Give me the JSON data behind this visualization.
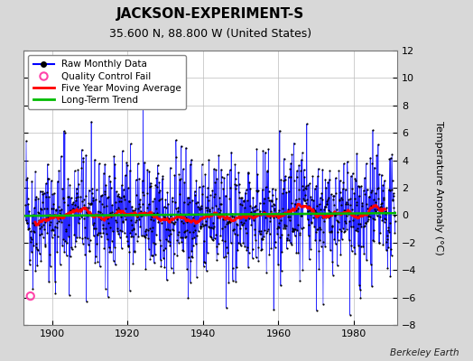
{
  "title": "JACKSON-EXPERIMENT-S",
  "subtitle": "35.600 N, 88.800 W (United States)",
  "ylabel": "Temperature Anomaly (°C)",
  "credit": "Berkeley Earth",
  "year_start": 1893,
  "year_end": 1990,
  "ylim": [
    -8,
    12
  ],
  "yticks": [
    -8,
    -6,
    -4,
    -2,
    0,
    2,
    4,
    6,
    8,
    10,
    12
  ],
  "xticks": [
    1900,
    1920,
    1940,
    1960,
    1980
  ],
  "background_color": "#d8d8d8",
  "plot_bg_color": "#ffffff",
  "raw_line_color": "#0000ff",
  "raw_dot_color": "#000000",
  "moving_avg_color": "#ff0000",
  "trend_color": "#00bb00",
  "qc_fail_color": "#ff44aa",
  "legend_items": [
    "Raw Monthly Data",
    "Quality Control Fail",
    "Five Year Moving Average",
    "Long-Term Trend"
  ],
  "grid_color": "#bbbbbb",
  "title_fontsize": 11,
  "subtitle_fontsize": 9,
  "label_fontsize": 8,
  "tick_fontsize": 8,
  "legend_fontsize": 7.5,
  "seed": 42,
  "trend_slope": 0.002,
  "trend_intercept": -0.15,
  "qc_fail_year": 1894.3,
  "qc_fail_value": -5.9
}
